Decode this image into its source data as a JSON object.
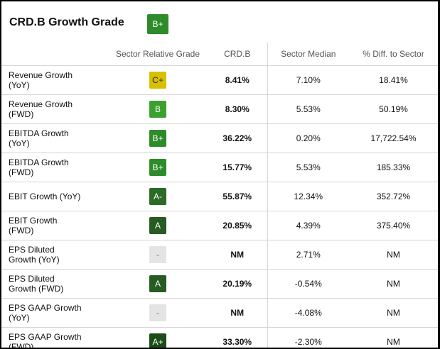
{
  "title": "CRD.B Growth Grade",
  "overall_grade": "B+",
  "headers": [
    "",
    "Sector Relative Grade",
    "CRD.B",
    "Sector Median",
    "% Diff. to Sector"
  ],
  "rows": [
    {
      "metric_line1": "Revenue Growth",
      "metric_line2": "(YoY)",
      "grade": "C+",
      "grade_color": "#d8c000",
      "value": "8.41%",
      "median": "7.10%",
      "diff": "18.41%"
    },
    {
      "metric_line1": "Revenue Growth",
      "metric_line2": "(FWD)",
      "grade": "B",
      "grade_color": "#3aa12e",
      "value": "8.30%",
      "median": "5.53%",
      "diff": "50.19%"
    },
    {
      "metric_line1": "EBITDA Growth",
      "metric_line2": "(YoY)",
      "grade": "B+",
      "grade_color": "#2e8b2a",
      "value": "36.22%",
      "median": "0.20%",
      "diff": "17,722.54%"
    },
    {
      "metric_line1": "EBITDA Growth",
      "metric_line2": "(FWD)",
      "grade": "B+",
      "grade_color": "#2e8b2a",
      "value": "15.77%",
      "median": "5.53%",
      "diff": "185.33%"
    },
    {
      "metric_line1": "EBIT Growth (YoY)",
      "metric_line2": "",
      "grade": "A-",
      "grade_color": "#2b6a27",
      "value": "55.87%",
      "median": "12.34%",
      "diff": "352.72%"
    },
    {
      "metric_line1": "EBIT Growth",
      "metric_line2": "(FWD)",
      "grade": "A",
      "grade_color": "#265c22",
      "value": "20.85%",
      "median": "4.39%",
      "diff": "375.40%"
    },
    {
      "metric_line1": "EPS Diluted",
      "metric_line2": "Growth (YoY)",
      "grade": "-",
      "grade_color": "#e4e4e4",
      "value": "NM",
      "median": "2.71%",
      "diff": "NM"
    },
    {
      "metric_line1": "EPS Diluted",
      "metric_line2": "Growth (FWD)",
      "grade": "A",
      "grade_color": "#265c22",
      "value": "20.19%",
      "median": "-0.54%",
      "diff": "NM"
    },
    {
      "metric_line1": "EPS GAAP Growth",
      "metric_line2": "(YoY)",
      "grade": "-",
      "grade_color": "#e4e4e4",
      "value": "NM",
      "median": "-4.08%",
      "diff": "NM"
    },
    {
      "metric_line1": "EPS GAAP Growth",
      "metric_line2": "(FWD)",
      "grade": "A+",
      "grade_color": "#1d4c1a",
      "value": "33.30%",
      "median": "-2.30%",
      "diff": "NM"
    }
  ]
}
